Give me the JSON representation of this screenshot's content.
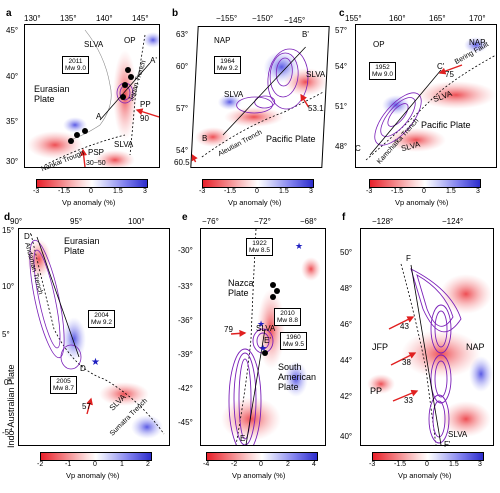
{
  "panels": {
    "a": {
      "label": "a",
      "lon_ticks": [
        "130°",
        "135°",
        "140°",
        "145°"
      ],
      "lat_ticks": [
        "45°",
        "40°",
        "35°",
        "30°"
      ],
      "box": "2011\nMw 9.0",
      "texts": {
        "op": "OP",
        "slva1": "SLVA",
        "slva2": "SLVA",
        "eurasian": "Eurasian\nPlate",
        "pp": "PP",
        "psp": "PSP",
        "a": "A",
        "a2": "A'",
        "japan": "Japan Trench",
        "nankai": "Nankai Trough",
        "v90": "90",
        "v3050": "30~50"
      },
      "cbar": {
        "ticks": [
          "-3",
          "-1.5",
          "0",
          "1.5",
          "3"
        ],
        "title": "Vp anomaly (%)"
      }
    },
    "b": {
      "label": "b",
      "lon_ticks": [
        "−155°",
        "−150°",
        "−145°"
      ],
      "lat_ticks": [
        "63°",
        "60°",
        "57°",
        "54°"
      ],
      "box": "1964\nMw 9.2",
      "texts": {
        "nap": "NAP",
        "slva1": "SLVA",
        "slva2": "SLVA",
        "pacific": "Pacific Plate",
        "b": "B",
        "b2": "B'",
        "aleutian": "Aleutian Trench",
        "v531": "53.1",
        "v605": "60.5"
      },
      "cbar": {
        "ticks": [
          "-3",
          "-1.5",
          "0",
          "1.5",
          "3"
        ],
        "title": "Vp anomaly (%)"
      }
    },
    "c": {
      "label": "c",
      "lon_ticks": [
        "155°",
        "160°",
        "165°",
        "170°"
      ],
      "lat_ticks": [
        "57°",
        "54°",
        "51°",
        "48°"
      ],
      "box": "1952\nMw 9.0",
      "texts": {
        "op": "OP",
        "nap": "NAP",
        "slva1": "SLVA",
        "slva2": "SLVA",
        "pacific": "Pacific Plate",
        "c": "C",
        "c2": "C'",
        "bering": "Bering Fault",
        "kamchatka": "Kamchatka Trench",
        "v75": "75"
      },
      "cbar": {
        "ticks": [
          "-3",
          "-1.5",
          "0",
          "1.5",
          "3"
        ],
        "title": "Vp anomaly (%)"
      }
    },
    "d": {
      "label": "d",
      "lon_ticks": [
        "90°",
        "95°",
        "100°"
      ],
      "lat_ticks": [
        "15°",
        "10°",
        "5°",
        "0°",
        "-5°"
      ],
      "box1": "2004\nMw 9.2",
      "box2": "2005\nMw 8.7",
      "texts": {
        "eurasian": "Eurasian\nPlate",
        "indo": "Indo-Australian Plate",
        "andaman": "Andaman Trench",
        "sumatra": "Sumatra Trench",
        "slva": "SLVA",
        "d": "D",
        "d2": "D'",
        "v57": "57"
      },
      "cbar": {
        "ticks": [
          "-2",
          "-1",
          "0",
          "1",
          "2"
        ],
        "title": "Vp anomaly (%)"
      }
    },
    "e": {
      "label": "e",
      "lon_ticks": [
        "−76°",
        "−72°",
        "−68°"
      ],
      "lat_ticks": [
        "-30°",
        "-33°",
        "-36°",
        "-39°",
        "-42°",
        "-45°"
      ],
      "box1": "1922\nMw 8.5",
      "box2": "2010\nMw 8.8",
      "box3": "1960\nMw 9.5",
      "texts": {
        "nazca": "Nazca\nPlate",
        "south": "South\nAmerican\nPlate",
        "slva": "SLVA",
        "e": "E",
        "e2": "E'",
        "v79": "79"
      },
      "cbar": {
        "ticks": [
          "-4",
          "-2",
          "0",
          "2",
          "4"
        ],
        "title": "Vp anomaly (%)"
      }
    },
    "f": {
      "label": "f",
      "lon_ticks": [
        "−128°",
        "−124°"
      ],
      "lat_ticks": [
        "50°",
        "48°",
        "46°",
        "44°",
        "42°",
        "40°"
      ],
      "texts": {
        "jfp": "JFP",
        "nap": "NAP",
        "pp": "PP",
        "slva": "SLVA",
        "f": "F",
        "f2": "F'",
        "v43": "43",
        "v38": "38",
        "v33": "33"
      },
      "cbar": {
        "ticks": [
          "-3",
          "-1.5",
          "0",
          "1.5",
          "3"
        ],
        "title": "Vp anomaly (%)"
      }
    }
  },
  "colors": {
    "low": "#e8303a",
    "high": "#3a3ad8",
    "contour": "#7a1fb8",
    "arrow": "#e02020"
  }
}
